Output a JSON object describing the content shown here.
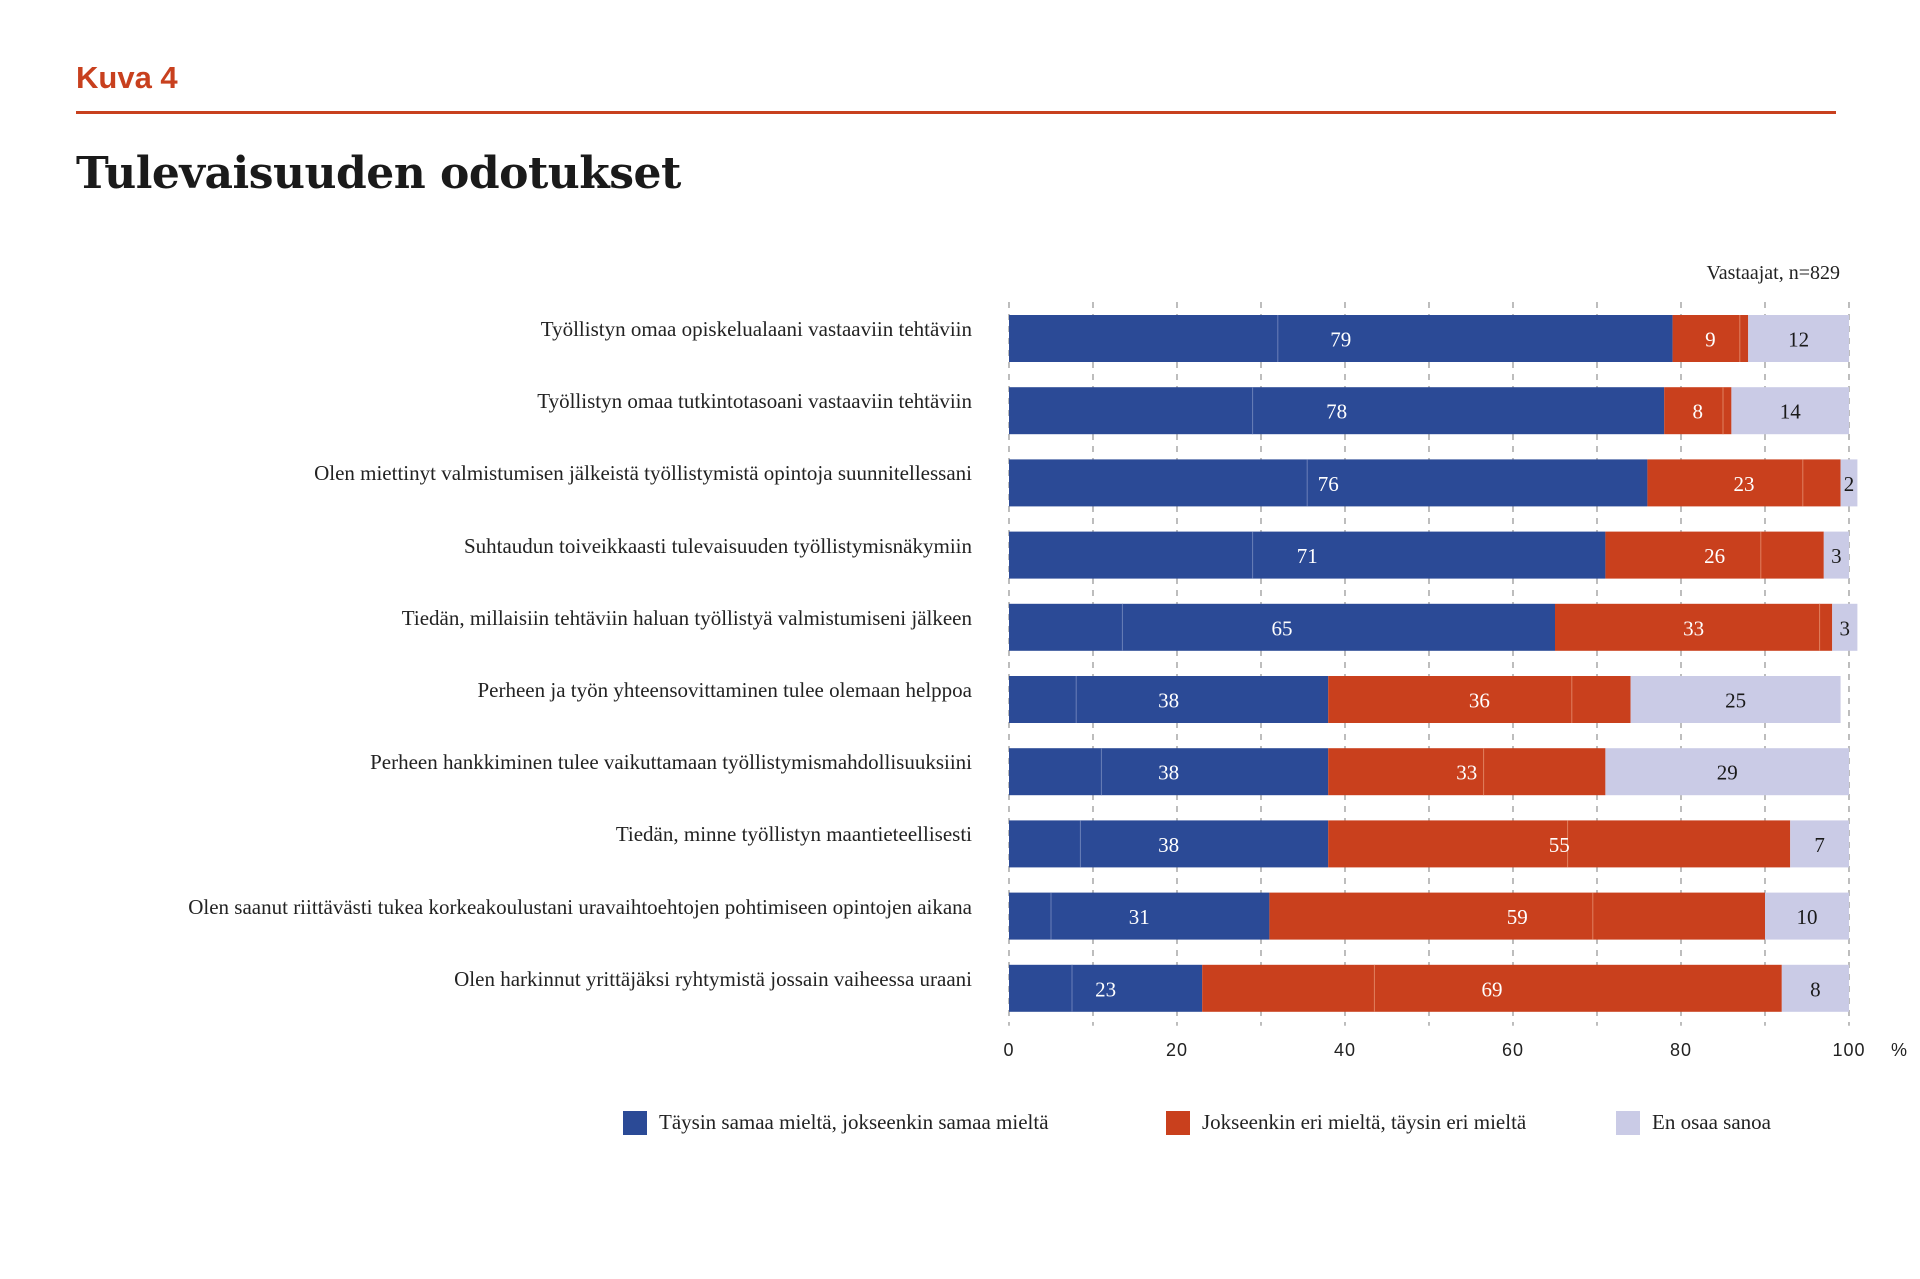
{
  "figure_label": "Kuva 4",
  "chart_data": {
    "type": "bar",
    "orientation": "horizontal",
    "stacked": true,
    "title": "Tulevaisuuden odotukset",
    "note": "Vastaajat, n=829",
    "x_unit": "%",
    "xlim": [
      0,
      100
    ],
    "x_ticks": [
      0,
      20,
      40,
      60,
      80,
      100
    ],
    "grid": true,
    "legend_position": "bottom",
    "categories": [
      "Työllistyn omaa opiskelualaani vastaaviin tehtäviin",
      "Työllistyn omaa tutkintotasoani vastaaviin tehtäviin",
      "Olen miettinyt valmistumisen jälkeistä työllistymistä opintoja suunnitellessani",
      "Suhtaudun toiveikkaasti tulevaisuuden työllistymisnäkymiin",
      "Tiedän, millaisiin tehtäviin haluan työllistyä valmistumiseni jälkeen",
      "Perheen ja työn yhteensovittaminen tulee olemaan helppoa",
      "Perheen hankkiminen tulee vaikuttamaan työllistymismahdollisuuksiini",
      "Tiedän, minne työllistyn maantieteellisesti",
      "Olen saanut riittävästi tukea korkeakoulustani uravaihtoehtojen pohtimiseen opintojen aikana",
      "Olen harkinnut yrittäjäksi ryhtymistä jossain vaiheessa uraani"
    ],
    "series": [
      {
        "name": "Täysin samaa mieltä, jokseenkin samaa mieltä",
        "color": "#2b4a96",
        "values": [
          79,
          78,
          76,
          71,
          65,
          38,
          38,
          38,
          31,
          23
        ],
        "inner_split": [
          32,
          29,
          35.5,
          29,
          13.5,
          8,
          11,
          8.5,
          5,
          7.5
        ]
      },
      {
        "name": "Jokseenkin eri mieltä, täysin eri mieltä",
        "color": "#c9401d",
        "values": [
          9,
          8,
          23,
          26,
          33,
          36,
          33,
          55,
          59,
          69
        ],
        "inner_split": [
          8,
          7,
          18.5,
          18.5,
          31.5,
          29,
          18.5,
          28.5,
          38.5,
          20.5
        ]
      },
      {
        "name": "En osaa sanoa",
        "color": "#cacbe6",
        "values": [
          12,
          14,
          2,
          3,
          3,
          25,
          29,
          7,
          10,
          8
        ]
      }
    ]
  }
}
